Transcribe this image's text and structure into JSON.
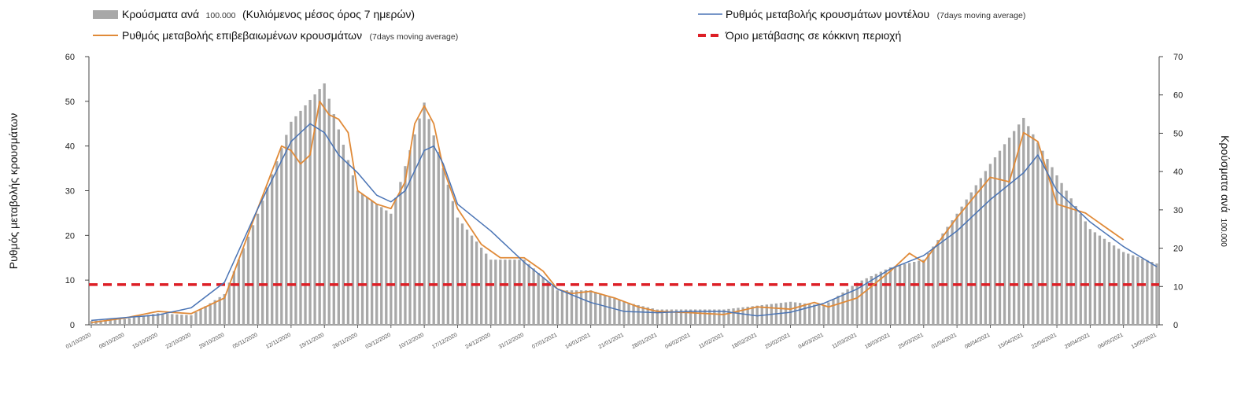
{
  "chart_data": {
    "type": "bar",
    "legend": {
      "placement": "top",
      "bars": {
        "main": "Κρούσματα ανά",
        "num": "100.000",
        "rest": "(Κυλιόμενος μέσος όρος 7 ημερών)"
      },
      "observed": {
        "main": "Ρυθμός μεταβολής επιβεβαιωμένων κρουσμάτων",
        "sub": "(7days moving average)"
      },
      "model": {
        "main": "Ρυθμός μεταβολής κρουσμάτων μοντέλου",
        "sub": "(7days moving average)"
      },
      "threshold": {
        "main": "Όριο μετάβασης σε κόκκινη περιοχή"
      }
    },
    "y_left": {
      "label": "Ρυθμός μεταβολής κρουσμάτων",
      "ylim": [
        0,
        60
      ],
      "ticks": [
        "0",
        "10",
        "20",
        "30",
        "40",
        "50",
        "60"
      ]
    },
    "y_right": {
      "label_main": "Κρούσματα ανά",
      "label_num": "100.000",
      "ylim": [
        0,
        70
      ],
      "ticks": [
        "0",
        "10",
        "20",
        "30",
        "40",
        "50",
        "60",
        "70"
      ]
    },
    "x_tick_labels": [
      "01/10/2020",
      "08/10/2020",
      "15/10/2020",
      "22/10/2020",
      "29/10/2020",
      "05/11/2020",
      "12/11/2020",
      "19/11/2020",
      "26/11/2020",
      "03/12/2020",
      "10/12/2020",
      "17/12/2020",
      "24/12/2020",
      "31/12/2020",
      "07/01/2021",
      "14/01/2021",
      "21/01/2021",
      "28/01/2021",
      "04/02/2021",
      "11/02/2021",
      "18/02/2021",
      "25/02/2021",
      "04/03/2021",
      "11/03/2021",
      "18/03/2021",
      "25/03/2021",
      "01/04/2021",
      "08/04/2021",
      "15/04/2021",
      "22/04/2021",
      "29/04/2021",
      "06/05/2021",
      "13/05/2021"
    ],
    "bar_anchors": [
      [
        0,
        1
      ],
      [
        7,
        1.5
      ],
      [
        14,
        3
      ],
      [
        21,
        2.5
      ],
      [
        28,
        8
      ],
      [
        35,
        29
      ],
      [
        42,
        53
      ],
      [
        49,
        63
      ],
      [
        56,
        35
      ],
      [
        63,
        29
      ],
      [
        70,
        58
      ],
      [
        77,
        28
      ],
      [
        84,
        17
      ],
      [
        91,
        17
      ],
      [
        98,
        9
      ],
      [
        105,
        9
      ],
      [
        112,
        6
      ],
      [
        119,
        4
      ],
      [
        126,
        4
      ],
      [
        133,
        4
      ],
      [
        140,
        5
      ],
      [
        147,
        6
      ],
      [
        154,
        5
      ],
      [
        161,
        11
      ],
      [
        168,
        15
      ],
      [
        175,
        17
      ],
      [
        182,
        29
      ],
      [
        189,
        42
      ],
      [
        196,
        54
      ],
      [
        203,
        39
      ],
      [
        210,
        25
      ],
      [
        217,
        19
      ],
      [
        224,
        16
      ]
    ],
    "observed_anchors": [
      [
        0,
        0.5
      ],
      [
        7,
        1.5
      ],
      [
        14,
        3
      ],
      [
        21,
        2.5
      ],
      [
        28,
        6
      ],
      [
        35,
        26
      ],
      [
        40,
        40
      ],
      [
        42,
        39
      ],
      [
        44,
        36
      ],
      [
        46,
        38
      ],
      [
        48,
        50
      ],
      [
        50,
        47
      ],
      [
        52,
        46
      ],
      [
        54,
        43
      ],
      [
        56,
        30
      ],
      [
        60,
        27
      ],
      [
        63,
        26
      ],
      [
        66,
        32
      ],
      [
        68,
        45
      ],
      [
        70,
        49
      ],
      [
        72,
        45
      ],
      [
        74,
        35
      ],
      [
        77,
        26
      ],
      [
        82,
        18
      ],
      [
        86,
        15
      ],
      [
        91,
        15
      ],
      [
        95,
        12
      ],
      [
        98,
        8
      ],
      [
        101,
        7
      ],
      [
        105,
        7.5
      ],
      [
        110,
        6
      ],
      [
        115,
        4
      ],
      [
        119,
        3
      ],
      [
        126,
        2.7
      ],
      [
        133,
        2.3
      ],
      [
        140,
        4
      ],
      [
        147,
        3.5
      ],
      [
        152,
        5
      ],
      [
        155,
        4
      ],
      [
        161,
        6
      ],
      [
        168,
        12
      ],
      [
        172,
        16
      ],
      [
        175,
        14
      ],
      [
        182,
        24
      ],
      [
        189,
        33
      ],
      [
        193,
        32
      ],
      [
        196,
        43
      ],
      [
        199,
        41
      ],
      [
        203,
        27
      ],
      [
        209,
        25
      ],
      [
        213,
        22
      ],
      [
        217,
        19
      ]
    ],
    "model_anchors": [
      [
        0,
        1
      ],
      [
        7,
        1.6
      ],
      [
        14,
        2.2
      ],
      [
        21,
        3.8
      ],
      [
        28,
        9.5
      ],
      [
        35,
        26
      ],
      [
        42,
        41
      ],
      [
        46,
        45
      ],
      [
        49,
        43
      ],
      [
        52,
        38
      ],
      [
        56,
        34
      ],
      [
        60,
        29
      ],
      [
        63,
        27.5
      ],
      [
        66,
        30
      ],
      [
        70,
        39
      ],
      [
        72,
        40
      ],
      [
        74,
        36
      ],
      [
        77,
        27
      ],
      [
        84,
        21
      ],
      [
        91,
        14
      ],
      [
        98,
        8
      ],
      [
        105,
        5
      ],
      [
        112,
        3
      ],
      [
        119,
        2.7
      ],
      [
        126,
        3
      ],
      [
        133,
        3
      ],
      [
        140,
        2
      ],
      [
        147,
        2.8
      ],
      [
        154,
        4.8
      ],
      [
        161,
        8
      ],
      [
        168,
        12.5
      ],
      [
        175,
        15.5
      ],
      [
        182,
        21
      ],
      [
        189,
        28
      ],
      [
        196,
        34
      ],
      [
        199,
        38
      ],
      [
        203,
        30
      ],
      [
        210,
        23
      ],
      [
        217,
        17.5
      ],
      [
        224,
        13
      ]
    ],
    "threshold": 9,
    "n_days": 225,
    "colors": {
      "bars": "#a8a8a8",
      "observed": "#e08a38",
      "model": "#4a74b5",
      "threshold": "#dd1f26"
    }
  }
}
